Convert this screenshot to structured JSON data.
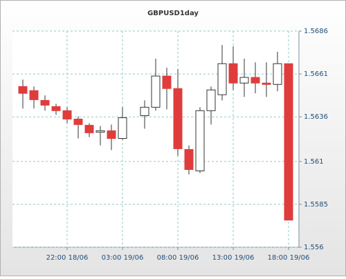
{
  "chart_data": {
    "type": "candlestick",
    "title": "GBPUSD1day",
    "categories": [
      null,
      null,
      null,
      null,
      "22:00 18/06",
      null,
      null,
      null,
      null,
      "03:00 19/06",
      null,
      null,
      null,
      null,
      "08:00 19/06",
      null,
      null,
      null,
      null,
      "13:00 19/06",
      null,
      null,
      null,
      null,
      "18:00 19/06"
    ],
    "open": [
      1.56537,
      1.56513,
      1.56456,
      1.5642,
      1.56396,
      1.56347,
      1.56311,
      1.56271,
      1.56279,
      1.56234,
      null,
      1.56367,
      1.56416,
      1.56598,
      1.56525,
      1.5617,
      1.56045,
      1.56396,
      1.56489,
      1.5667,
      1.56557,
      1.5659,
      1.56557,
      1.56549,
      1.5667
    ],
    "high": [
      1.56577,
      1.56537,
      1.56485,
      1.56436,
      1.56416,
      1.56363,
      1.56323,
      1.56307,
      1.56315,
      1.56416,
      null,
      1.56456,
      1.56699,
      1.56646,
      1.56638,
      1.56194,
      1.56416,
      1.56537,
      1.56779,
      1.56771,
      1.56699,
      1.56678,
      1.56678,
      1.56739,
      1.5667
    ],
    "low": [
      1.56408,
      1.56408,
      1.56396,
      1.56372,
      1.56323,
      1.56234,
      1.56242,
      1.56194,
      1.56166,
      1.56226,
      null,
      1.56291,
      1.56396,
      1.56404,
      1.56133,
      1.56024,
      1.56032,
      1.56315,
      1.56456,
      1.56517,
      1.56476,
      1.56497,
      1.56476,
      1.56509,
      1.55758
    ],
    "close": [
      1.56497,
      1.5646,
      1.56428,
      1.56396,
      1.56347,
      1.56315,
      1.56267,
      1.56279,
      1.56234,
      1.56355,
      null,
      1.56416,
      1.56598,
      1.56525,
      1.56174,
      1.56053,
      1.56396,
      1.56517,
      1.5667,
      1.56557,
      1.5659,
      1.56557,
      1.56549,
      1.5667,
      1.55758
    ],
    "up_color": "#ffffff",
    "down_color": "#e03c3c",
    "ylim": [
      1.556,
      1.5686
    ],
    "yticks": [
      1.556,
      1.5585,
      1.561,
      1.5636,
      1.5661,
      1.5686
    ],
    "grid": true
  }
}
